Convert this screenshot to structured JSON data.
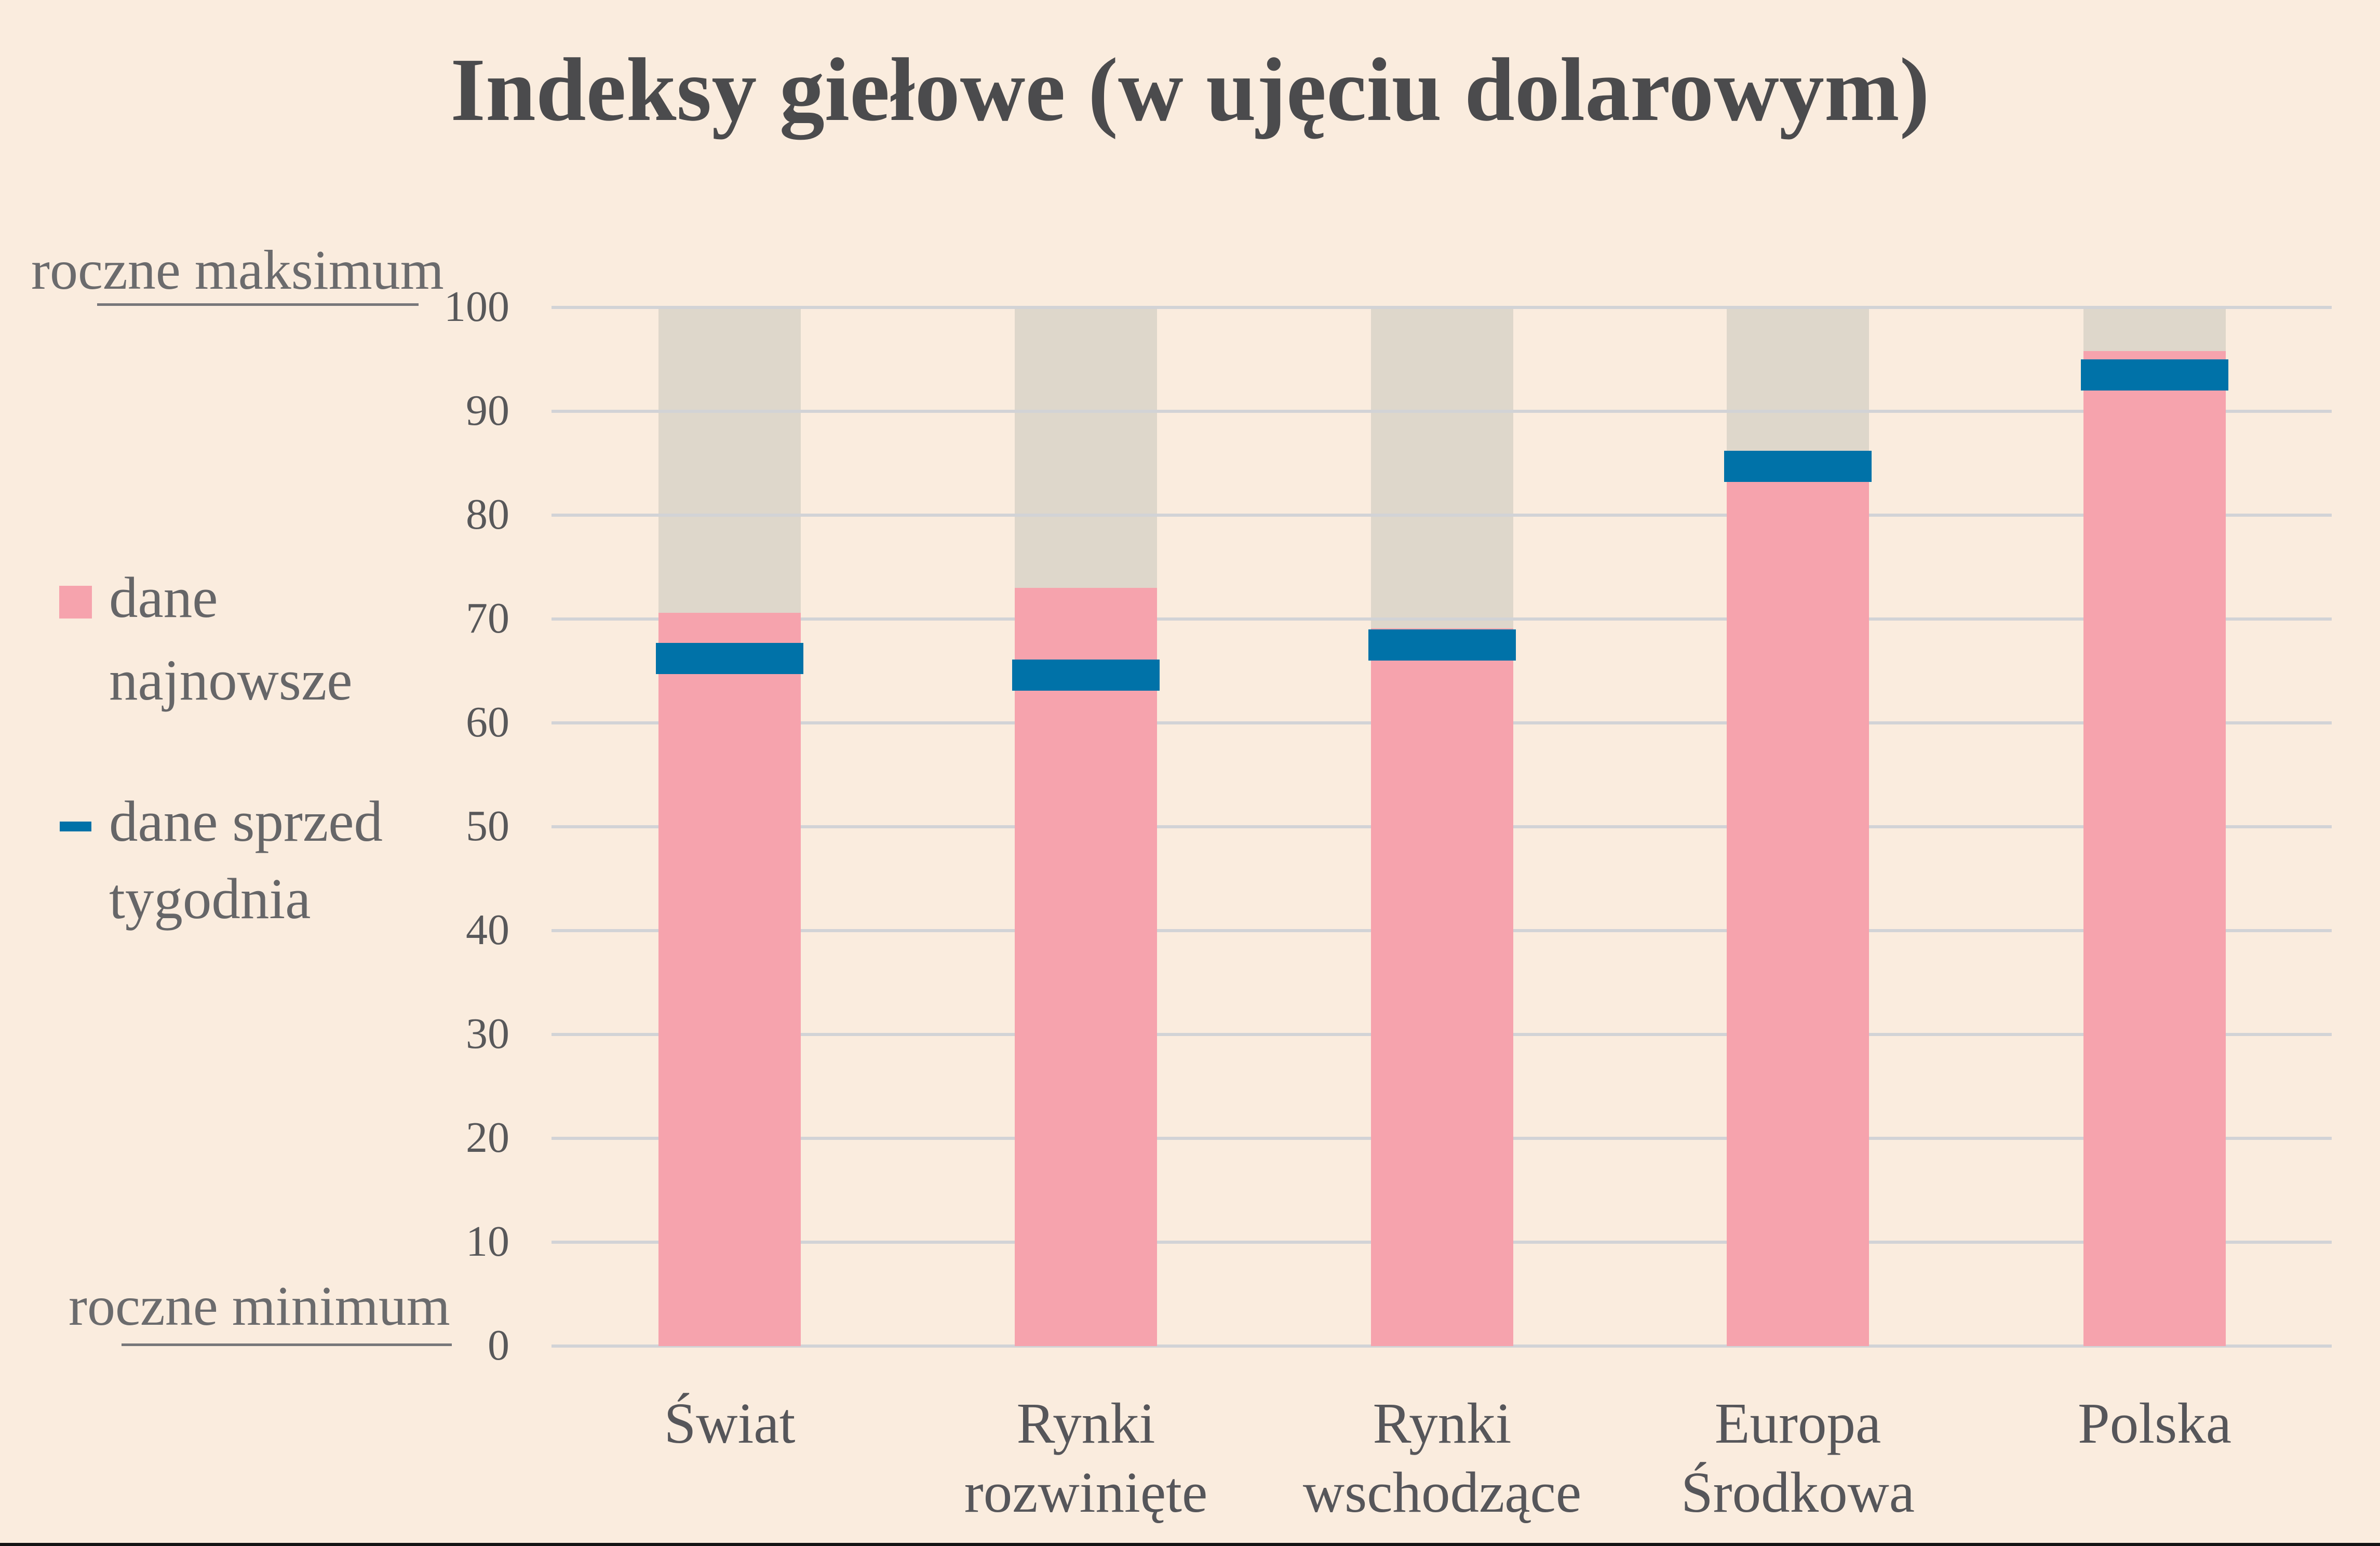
{
  "title": "Indeksy giełowe (w ujęciu dolarowym)",
  "legend": {
    "items": [
      {
        "label_line1": "dane",
        "label_line2": "najnowsze",
        "swatch": "pink-square",
        "series": "dane_najnowsze"
      },
      {
        "label_line1": "dane sprzed",
        "label_line2": "tygodnia",
        "swatch": "blue-dash",
        "series": "dane_sprzed_tygodnia"
      }
    ]
  },
  "annotations": {
    "top": "roczne maksimum",
    "bottom": "roczne minimum"
  },
  "chart_data": {
    "type": "bar",
    "title": "Indeksy giełowe (w ujęciu dolarowym)",
    "categories": [
      "Świat",
      "Rynki rozwinięte",
      "Rynki wschodzące",
      "Europa Środkowa",
      "Polska"
    ],
    "categories_lines": [
      [
        "Świat"
      ],
      [
        "Rynki",
        "rozwinięte"
      ],
      [
        "Rynki",
        "wschodzące"
      ],
      [
        "Europa",
        "Środkowa"
      ],
      [
        "Polska"
      ]
    ],
    "series": [
      {
        "name": "dane najnowsze",
        "type": "bar",
        "values": [
          70.6,
          73.0,
          69.1,
          83.5,
          95.8
        ]
      },
      {
        "name": "dane sprzed tygodnia",
        "type": "dash",
        "values": [
          66.2,
          64.6,
          67.5,
          84.7,
          93.5
        ]
      },
      {
        "name": "zakres roczny (min-max)",
        "type": "background-bar",
        "values": [
          100,
          100,
          100,
          100,
          100
        ]
      }
    ],
    "ylim": [
      0,
      100
    ],
    "yticks": [
      0,
      10,
      20,
      30,
      40,
      50,
      60,
      70,
      80,
      90,
      100
    ],
    "ymin_label": "roczne minimum",
    "ymax_label": "roczne maksimum",
    "grid": true,
    "legend_position": "left",
    "xlabel": "",
    "ylabel": ""
  },
  "colors": {
    "background": "#FAECDE",
    "range_bar": "#DED7CB",
    "latest_bar": "#F6A3AD",
    "week_ago_dash": "#0072A8",
    "gridline": "#D2D3D6",
    "title_text": "#4B4B4D",
    "tick_text": "#58585A",
    "label_text": "#56565A",
    "legend_text": "#666668",
    "annotation_text": "#6B6B6D",
    "annotation_line": "#77777A",
    "bottom_strip": "#141414"
  }
}
